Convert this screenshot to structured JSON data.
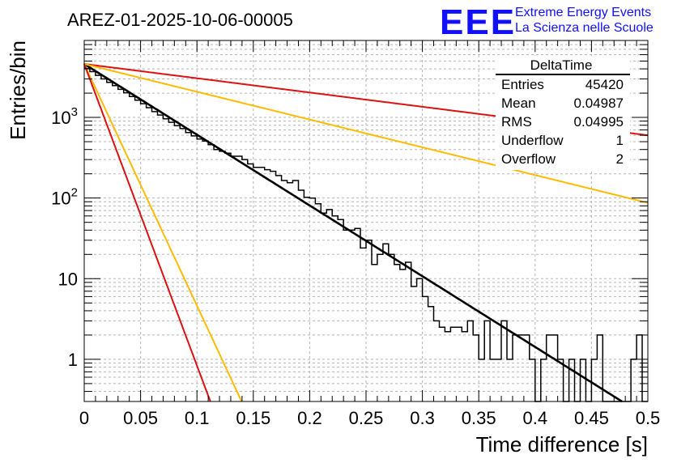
{
  "header": {
    "title": "AREZ-01-2025-10-06-00005",
    "logo_text": "EEE",
    "org_line1": "Extreme Energy Events",
    "org_line2": "La Scienza nelle Scuole"
  },
  "stats": {
    "title": "DeltaTime",
    "rows": [
      {
        "label": "Entries",
        "value": "45420"
      },
      {
        "label": "Mean",
        "value": "0.04987"
      },
      {
        "label": "RMS",
        "value": "0.04995"
      },
      {
        "label": "Underflow",
        "value": "1"
      },
      {
        "label": "Overflow",
        "value": "2"
      }
    ]
  },
  "chart_data": {
    "type": "histogram",
    "title": "AREZ-01-2025-10-06-00005",
    "xlabel": "Time difference [s]",
    "ylabel": "Entries/bin",
    "xlim": [
      0,
      0.5
    ],
    "ylim": [
      0.3,
      9000
    ],
    "yscale": "log",
    "grid": true,
    "x_ticks": [
      "0",
      "0.05",
      "0.1",
      "0.15",
      "0.2",
      "0.25",
      "0.3",
      "0.35",
      "0.4",
      "0.45",
      "0.5"
    ],
    "y_ticks": [
      {
        "value": 1,
        "label": "1"
      },
      {
        "value": 10,
        "label": "10"
      },
      {
        "value": 100,
        "label": "10^2"
      },
      {
        "value": 1000,
        "label": "10^3"
      }
    ],
    "colors": {
      "hist": "#000000",
      "fit": "#000000",
      "red": "#dd1111",
      "orange": "#ffbb00"
    },
    "histogram": {
      "bin_width": 0.005,
      "bin_start": 0,
      "counts": [
        4050,
        3700,
        3320,
        3000,
        2720,
        2480,
        2230,
        2020,
        1820,
        1640,
        1480,
        1320,
        1180,
        1070,
        960,
        870,
        790,
        730,
        650,
        590,
        540,
        510,
        460,
        400,
        380,
        360,
        330,
        330,
        300,
        265,
        240,
        240,
        225,
        215,
        190,
        165,
        155,
        165,
        125,
        102,
        100,
        85,
        65,
        72,
        60,
        54,
        40,
        40,
        42,
        24,
        30,
        15,
        20,
        27,
        20,
        15,
        13,
        16,
        8,
        10,
        6,
        4.5,
        3,
        2.5,
        2.2,
        2.5,
        2.5,
        2.2,
        3,
        2,
        1,
        3,
        1,
        1,
        3,
        1,
        2,
        2,
        2,
        1,
        0.1,
        1,
        2,
        2,
        1,
        0.1,
        1,
        0.1,
        1,
        0.1,
        1,
        2,
        0.1,
        0.1,
        0.1,
        0.1,
        0.1,
        1,
        2,
        0.1
      ]
    },
    "curves": [
      {
        "name": "fit",
        "color": "#000000",
        "amplitude": 4600,
        "tau": 0.0495
      },
      {
        "name": "slow-red",
        "color": "#dd1111",
        "amplitude": 4600,
        "tau": 0.2455
      },
      {
        "name": "slow-orange",
        "color": "#ffbb00",
        "amplitude": 4600,
        "tau": 0.1261
      },
      {
        "name": "fast-orange",
        "color": "#ffbb00",
        "amplitude": 4600,
        "tau": 0.01449
      },
      {
        "name": "fast-red",
        "color": "#dd1111",
        "amplitude": 4600,
        "tau": 0.01161
      }
    ]
  }
}
